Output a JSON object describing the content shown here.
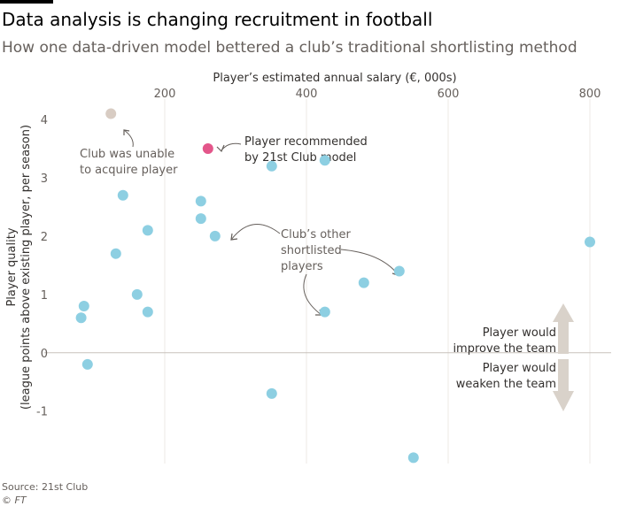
{
  "header": {
    "title": "Data analysis is changing recruitment in football",
    "subtitle": "How one data-driven model bettered a club’s traditional shortlisting method"
  },
  "footer": {
    "source": "Source: 21st Club",
    "credit": "© FT"
  },
  "colors": {
    "shortlisted": "#8dcfe2",
    "recommended": "#e3568a",
    "unable": "#d8ccc3",
    "arrow": "#d9d2ca",
    "grid": "#ece8e4",
    "zero_line": "#c8c2bc"
  },
  "annotations": {
    "unable_line1": "Club was unable",
    "unable_line2": "to acquire player",
    "recommended_line1": "Player recommended",
    "recommended_line2": "by 21st Club model",
    "others_line1": "Club’s other",
    "others_line2": "shortlisted",
    "others_line3": "players",
    "improve_line1": "Player would",
    "improve_line2": "improve the team",
    "weaken_line1": "Player would",
    "weaken_line2": "weaken the team"
  },
  "chart_data": {
    "type": "scatter",
    "title": "Data analysis is changing recruitment in football",
    "subtitle": "How one data-driven model bettered a club’s traditional shortlisting method",
    "xlabel": "Player’s estimated annual salary (€, 000s)",
    "ylabel_line1": "Player quality",
    "ylabel_line2": "(league points above existing player, per season)",
    "xlim": [
      50,
      830
    ],
    "ylim": [
      -1.9,
      4.35
    ],
    "xticks": [
      200,
      400,
      600,
      800
    ],
    "yticks": [
      -1,
      0,
      1,
      2,
      3,
      4
    ],
    "xtick_labels": [
      "200",
      "400",
      "600",
      "800"
    ],
    "ytick_labels": [
      "-1",
      "0",
      "1",
      "2",
      "3",
      "4"
    ],
    "series": [
      {
        "name": "Club’s other shortlisted players",
        "points": [
          {
            "x": 82,
            "y": 0.6
          },
          {
            "x": 86,
            "y": 0.8
          },
          {
            "x": 91,
            "y": -0.2
          },
          {
            "x": 131,
            "y": 1.7
          },
          {
            "x": 141,
            "y": 2.7
          },
          {
            "x": 161,
            "y": 1.0
          },
          {
            "x": 176,
            "y": 2.1
          },
          {
            "x": 176,
            "y": 0.7
          },
          {
            "x": 251,
            "y": 2.6
          },
          {
            "x": 251,
            "y": 2.3
          },
          {
            "x": 271,
            "y": 2.0
          },
          {
            "x": 351,
            "y": 3.2
          },
          {
            "x": 351,
            "y": -0.7
          },
          {
            "x": 426,
            "y": 3.3
          },
          {
            "x": 426,
            "y": 0.7
          },
          {
            "x": 481,
            "y": 1.2
          },
          {
            "x": 531,
            "y": 1.4
          },
          {
            "x": 551,
            "y": -1.8
          },
          {
            "x": 800,
            "y": 1.9
          }
        ]
      },
      {
        "name": "Player recommended by 21st Club model",
        "points": [
          {
            "x": 261,
            "y": 3.5
          }
        ]
      },
      {
        "name": "Club was unable to acquire player",
        "points": [
          {
            "x": 124,
            "y": 4.1
          }
        ]
      }
    ]
  }
}
